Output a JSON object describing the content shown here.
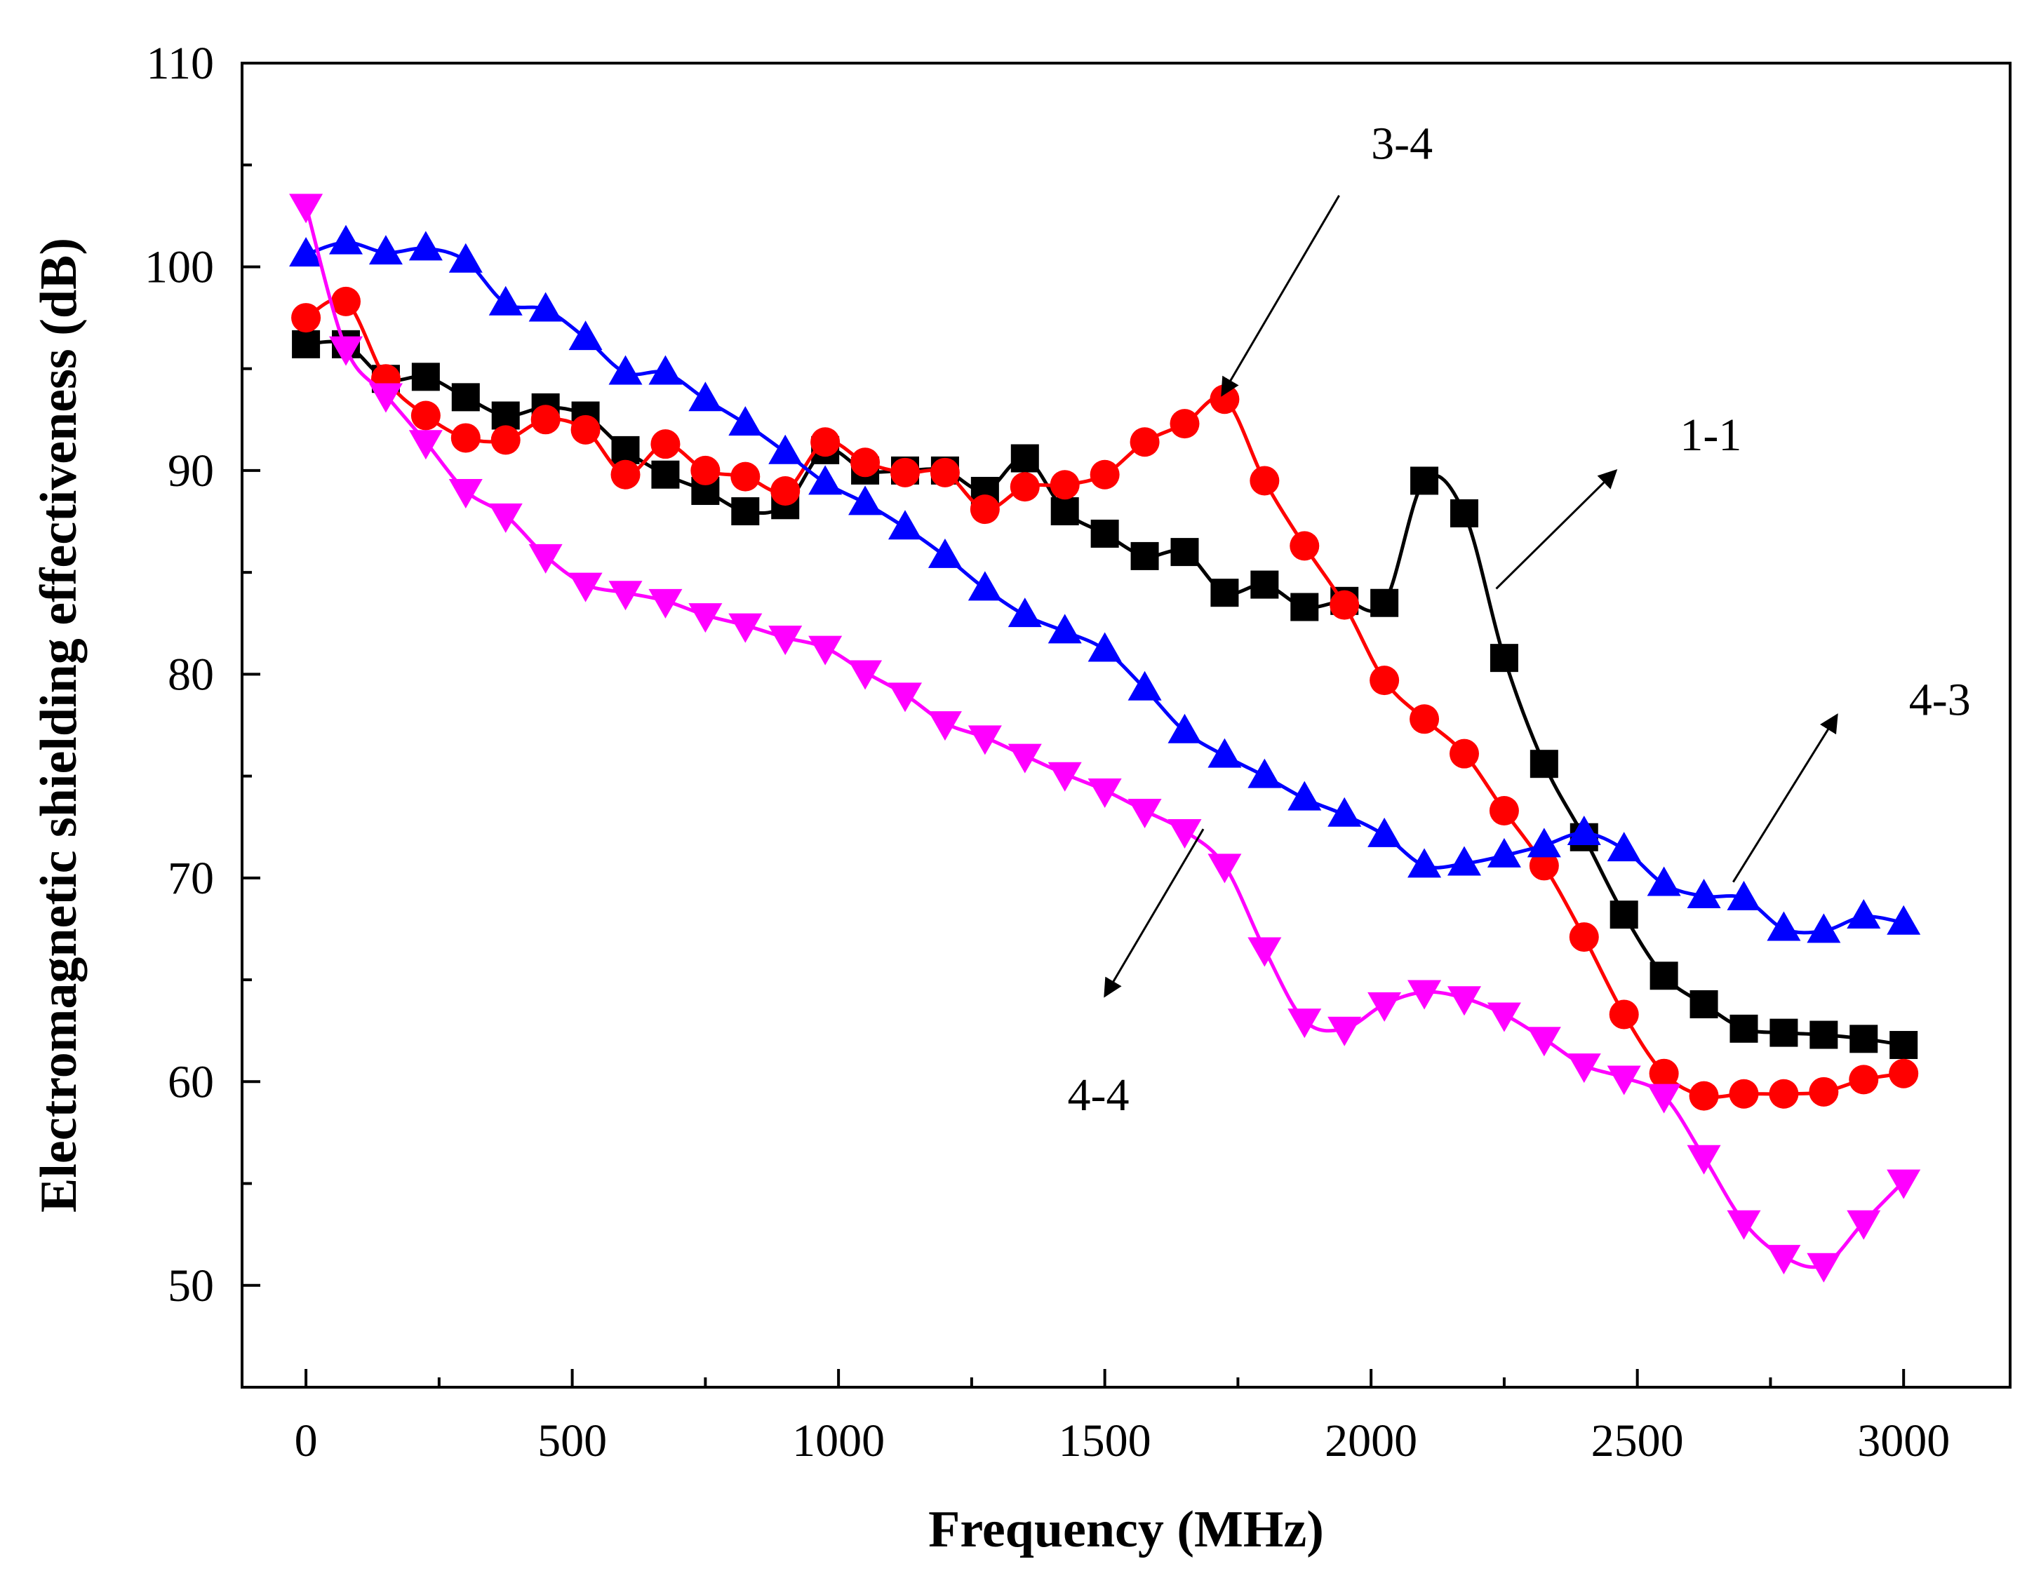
{
  "chart_data": {
    "type": "line",
    "title": "",
    "xlabel": "Frequency (MHz)",
    "ylabel": "Electromagnetic shielding effectiveness (dB)",
    "xlim": [
      -120,
      3200
    ],
    "ylim": [
      45,
      110
    ],
    "xticks": [
      0,
      500,
      1000,
      1500,
      2000,
      2500,
      3000
    ],
    "yticks": [
      50,
      60,
      70,
      80,
      90,
      100,
      110
    ],
    "grid": false,
    "series": [
      {
        "name": "1-1",
        "color": "#000000",
        "marker": "square",
        "x": [
          0,
          75,
          150,
          225,
          300,
          375,
          450,
          525,
          600,
          675,
          750,
          825,
          900,
          975,
          1050,
          1125,
          1200,
          1275,
          1350,
          1425,
          1500,
          1575,
          1650,
          1725,
          1800,
          1875,
          1950,
          2025,
          2100,
          2175,
          2250,
          2325,
          2400,
          2475,
          2550,
          2625,
          2700,
          2775,
          2850,
          2925,
          3000
        ],
        "y": [
          96.2,
          96.2,
          94.5,
          94.6,
          93.6,
          92.7,
          93.1,
          92.7,
          91.0,
          89.8,
          89.0,
          88.0,
          88.3,
          91.0,
          90.0,
          90.0,
          90.0,
          89.0,
          90.6,
          88.0,
          86.9,
          85.8,
          86.0,
          84.0,
          84.4,
          83.3,
          83.6,
          83.5,
          89.5,
          87.9,
          80.8,
          75.6,
          72.0,
          68.2,
          65.2,
          63.8,
          62.6,
          62.4,
          62.3,
          62.1,
          61.8
        ]
      },
      {
        "name": "3-4",
        "color": "#ff0000",
        "marker": "circle",
        "x": [
          0,
          75,
          150,
          225,
          300,
          375,
          450,
          525,
          600,
          675,
          750,
          825,
          900,
          975,
          1050,
          1125,
          1200,
          1275,
          1350,
          1425,
          1500,
          1575,
          1650,
          1725,
          1800,
          1875,
          1950,
          2025,
          2100,
          2175,
          2250,
          2325,
          2400,
          2475,
          2550,
          2625,
          2700,
          2775,
          2850,
          2925,
          3000
        ],
        "y": [
          97.5,
          98.3,
          94.5,
          92.7,
          91.6,
          91.5,
          92.5,
          92.0,
          89.8,
          91.3,
          90.0,
          89.7,
          89.0,
          91.4,
          90.4,
          89.9,
          89.9,
          88.1,
          89.2,
          89.3,
          89.8,
          91.4,
          92.3,
          93.5,
          89.5,
          86.3,
          83.4,
          79.7,
          77.8,
          76.1,
          73.3,
          70.6,
          67.1,
          63.3,
          60.4,
          59.3,
          59.4,
          59.4,
          59.5,
          60.1,
          60.4
        ]
      },
      {
        "name": "4-3",
        "color": "#0000ff",
        "marker": "triangle-up",
        "x": [
          0,
          75,
          150,
          225,
          300,
          375,
          450,
          525,
          600,
          675,
          750,
          825,
          900,
          975,
          1050,
          1125,
          1200,
          1275,
          1350,
          1425,
          1500,
          1575,
          1650,
          1725,
          1800,
          1875,
          1950,
          2025,
          2100,
          2175,
          2250,
          2325,
          2400,
          2475,
          2550,
          2625,
          2700,
          2775,
          2850,
          2925,
          3000
        ],
        "y": [
          100.6,
          101.2,
          100.7,
          100.9,
          100.3,
          98.2,
          97.9,
          96.5,
          94.8,
          94.8,
          93.5,
          92.3,
          90.9,
          89.4,
          88.4,
          87.2,
          85.8,
          84.2,
          82.9,
          82.1,
          81.2,
          79.3,
          77.2,
          76.0,
          75.0,
          73.9,
          73.1,
          72.1,
          70.6,
          70.7,
          71.1,
          71.6,
          72.2,
          71.4,
          69.7,
          69.1,
          69.0,
          67.5,
          67.4,
          68.1,
          67.8
        ]
      },
      {
        "name": "4-4",
        "color": "#ff00ff",
        "marker": "triangle-down",
        "x": [
          0,
          75,
          150,
          225,
          300,
          375,
          450,
          525,
          600,
          675,
          750,
          825,
          900,
          975,
          1050,
          1125,
          1200,
          1275,
          1350,
          1425,
          1500,
          1575,
          1650,
          1725,
          1800,
          1875,
          1950,
          2025,
          2100,
          2175,
          2250,
          2325,
          2400,
          2475,
          2550,
          2625,
          2700,
          2775,
          2850,
          2925,
          3000
        ],
        "y": [
          103.0,
          96.0,
          93.7,
          91.4,
          89.0,
          87.8,
          85.8,
          84.4,
          84.0,
          83.6,
          82.9,
          82.4,
          81.8,
          81.3,
          80.1,
          79.0,
          77.6,
          76.9,
          76.0,
          75.1,
          74.3,
          73.3,
          72.3,
          70.6,
          66.5,
          63.0,
          62.6,
          63.8,
          64.4,
          64.1,
          63.3,
          62.1,
          60.8,
          60.2,
          59.3,
          56.3,
          53.1,
          51.4,
          51.0,
          53.1,
          55.1
        ]
      }
    ],
    "annotations": [
      {
        "text": "3-4",
        "series": "3-4",
        "arrow_tip": [
          1720,
          93.7
        ],
        "arrow_tail": [
          1940,
          103.5
        ],
        "label_at": [
          2000,
          105.3
        ]
      },
      {
        "text": "1-1",
        "series": "1-1",
        "arrow_tip": [
          2460,
          90.0
        ],
        "arrow_tail": [
          2235,
          84.2
        ],
        "label_at": [
          2580,
          91.0
        ]
      },
      {
        "text": "4-3",
        "series": "4-3",
        "arrow_tip": [
          2875,
          78.0
        ],
        "arrow_tail": [
          2680,
          69.8
        ],
        "label_at": [
          3010,
          78.0
        ]
      },
      {
        "text": "4-4",
        "series": "4-4",
        "arrow_tip": [
          1500,
          64.2
        ],
        "arrow_tail": [
          1685,
          72.4
        ],
        "label_at": [
          1430,
          58.6
        ]
      }
    ]
  }
}
